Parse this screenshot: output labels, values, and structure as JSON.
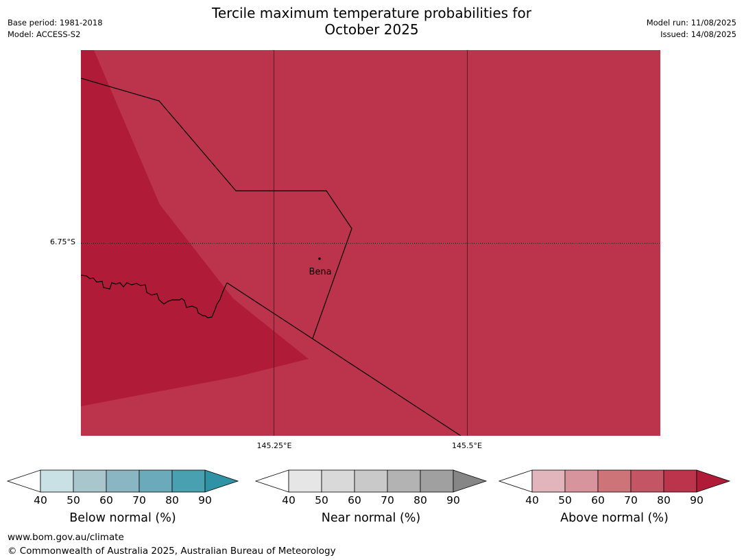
{
  "header": {
    "title_line1": "Tercile maximum temperature probabilities for",
    "title_line2": "October 2025",
    "base_period": "Base period: 1981-2018",
    "model": "Model: ACCESS-S2",
    "model_run": "Model run: 11/08/2025",
    "issued": "Issued: 14/08/2025"
  },
  "map": {
    "lat_label": "6.75°S",
    "lon_labels": [
      "145.25°E",
      "145.5°E"
    ],
    "place_name": "Bena",
    "colors": {
      "above_80_90": "#bc344b",
      "above_90": "#b01c38"
    }
  },
  "colorbars": [
    {
      "label": "Below normal (%)",
      "ticks": [
        "40",
        "50",
        "60",
        "70",
        "80",
        "90"
      ],
      "colors": [
        "#c9e0e5",
        "#a8c6cc",
        "#8ab5c2",
        "#6aaaba",
        "#48a0b0",
        "#2f93a5"
      ]
    },
    {
      "label": "Near normal (%)",
      "ticks": [
        "40",
        "50",
        "60",
        "70",
        "80",
        "90"
      ],
      "colors": [
        "#e6e6e6",
        "#d9d9d9",
        "#c9c9c9",
        "#b3b3b3",
        "#a0a0a0",
        "#868686"
      ]
    },
    {
      "label": "Above normal (%)",
      "ticks": [
        "40",
        "50",
        "60",
        "70",
        "80",
        "90"
      ],
      "colors": [
        "#e2b5bc",
        "#d8949d",
        "#cd7479",
        "#c45564",
        "#bc344b",
        "#b01c38"
      ]
    }
  ],
  "footer": {
    "url": "www.bom.gov.au/climate",
    "copyright": "© Commonwealth of Australia 2025, Australian Bureau of Meteorology"
  }
}
